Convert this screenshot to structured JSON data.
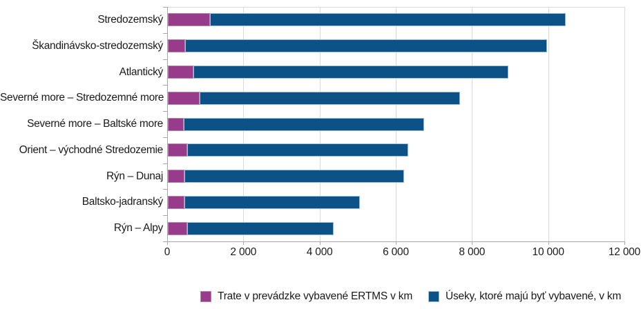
{
  "chart_data": {
    "type": "bar",
    "orientation": "horizontal",
    "stacked": true,
    "categories": [
      "Stredozemský",
      "Škandinávsko-stredozemský",
      "Atlantický",
      "Severné more – Stredozemné more",
      "Severné more – Baltské more",
      "Orient – východné Stredozemie",
      "Rýn – Dunaj",
      "Baltsko-jadranský",
      "Rýn – Alpy"
    ],
    "series": [
      {
        "name": "Trate v prevádzke vybavené ERTMS v km",
        "color": "#993b8b",
        "values": [
          1100,
          450,
          670,
          830,
          410,
          500,
          430,
          440,
          510
        ]
      },
      {
        "name": "Úseky, ktoré majú byť vybavené, v km",
        "color": "#0d5286",
        "values": [
          9350,
          9500,
          8270,
          6840,
          6320,
          5800,
          5770,
          4600,
          3840
        ]
      }
    ],
    "totals": [
      10450,
      9950,
      8940,
      7670,
      6730,
      6300,
      6200,
      5040,
      4350
    ],
    "xlim": [
      0,
      12000
    ],
    "x_tick_values": [
      0,
      2000,
      4000,
      6000,
      8000,
      10000,
      12000
    ],
    "x_tick_labels": [
      "0",
      "2 000",
      "4 000",
      "6 000",
      "8 000",
      "10 000",
      "12 000"
    ],
    "grid": "vertical-gridlines",
    "legend_position": "bottom",
    "axis_color": "#a6a6a6",
    "gridline_color": "#d9d9d9",
    "text_color": "#1a1a1a"
  }
}
